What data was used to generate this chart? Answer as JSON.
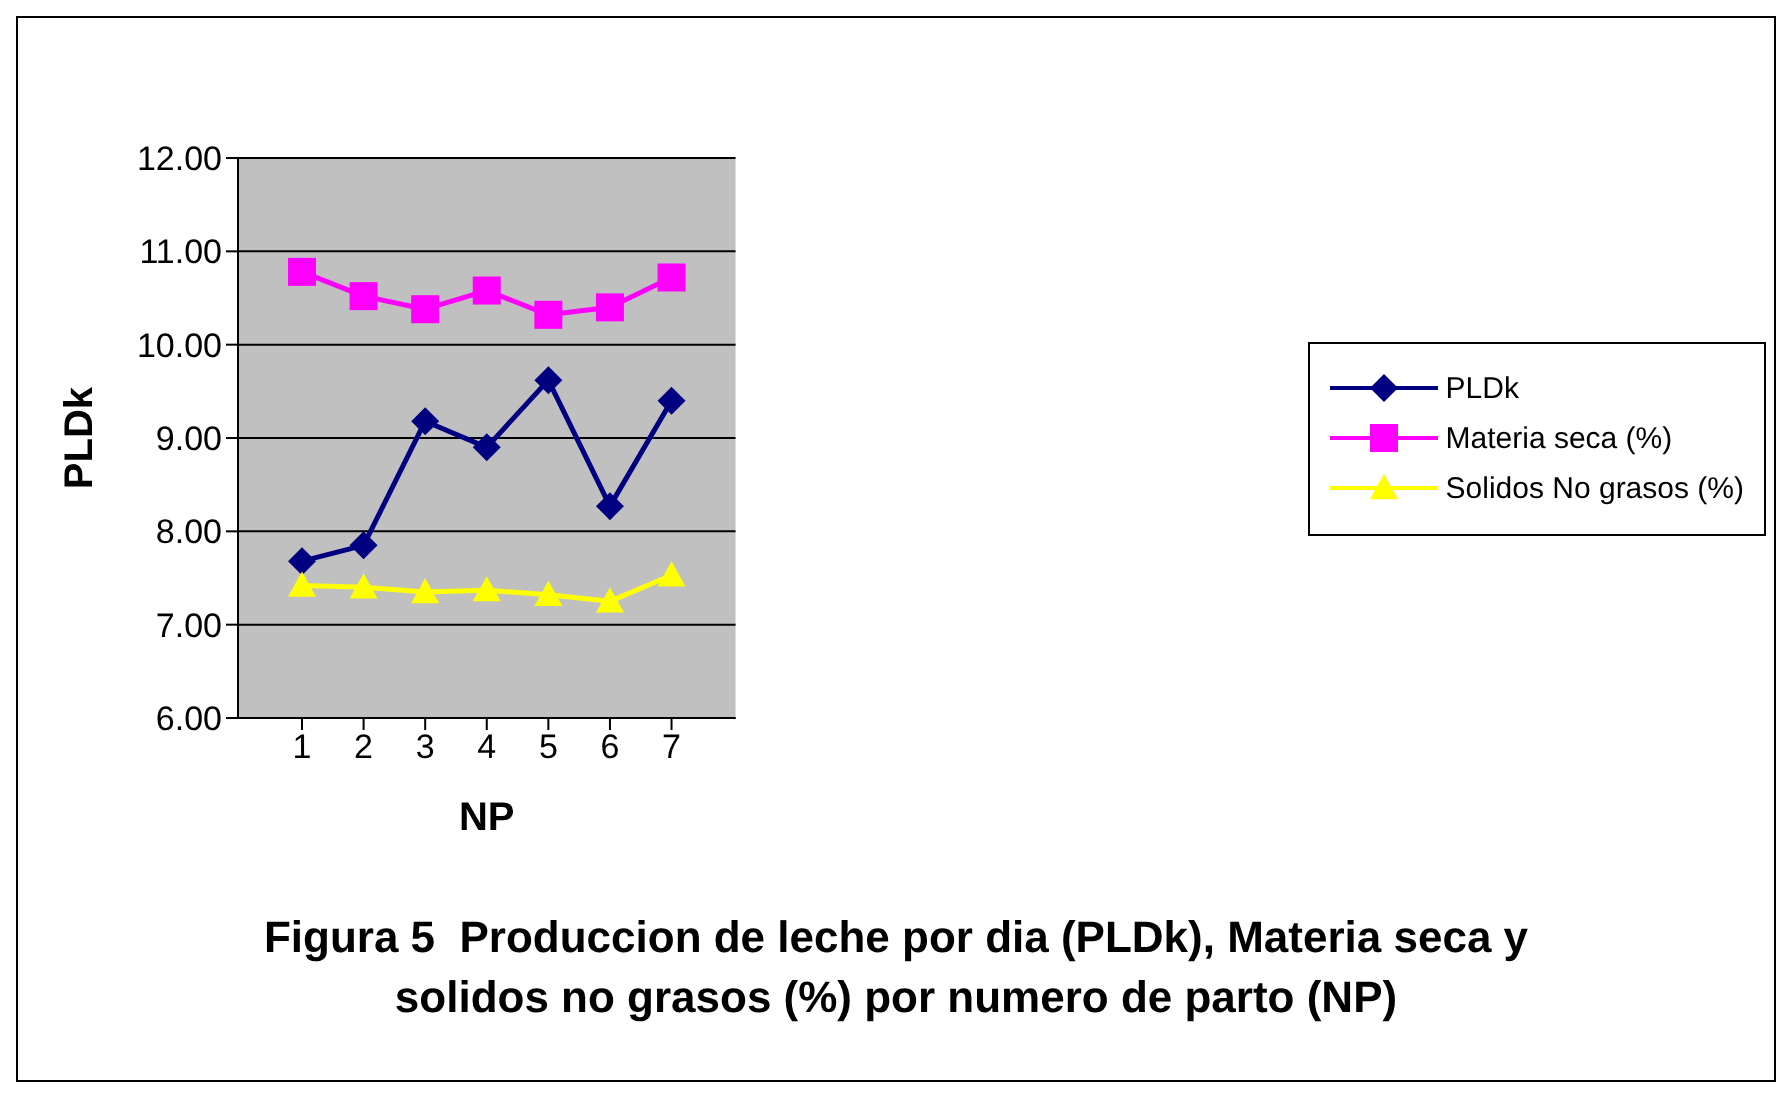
{
  "chart_data": {
    "type": "line",
    "title": "Figura 5  Produccion de leche por dia (PLDk), Materia seca y solidos no grasos (%) por numero de parto (NP)",
    "xlabel": "NP",
    "ylabel": "PLDk",
    "categories": [
      "1",
      "2",
      "3",
      "4",
      "5",
      "6",
      "7"
    ],
    "series": [
      {
        "name": "PLDk",
        "color": "#000080",
        "marker": "diamond",
        "values": [
          7.68,
          7.85,
          9.18,
          8.9,
          9.62,
          8.27,
          9.4
        ]
      },
      {
        "name": "Materia seca (%)",
        "color": "#ff00ff",
        "marker": "square",
        "values": [
          10.78,
          10.52,
          10.38,
          10.58,
          10.32,
          10.4,
          10.72
        ]
      },
      {
        "name": "Solidos No grasos (%)",
        "color": "#ffff00",
        "marker": "triangle",
        "values": [
          7.42,
          7.4,
          7.35,
          7.37,
          7.32,
          7.25,
          7.53
        ]
      }
    ],
    "ylim": [
      6,
      12
    ],
    "yticks": [
      {
        "value": 6,
        "label": "6.00"
      },
      {
        "value": 7,
        "label": "7.00"
      },
      {
        "value": 8,
        "label": "8.00"
      },
      {
        "value": 9,
        "label": "9.00"
      },
      {
        "value": 10,
        "label": "10.00"
      },
      {
        "value": 11,
        "label": "11.00"
      },
      {
        "value": 12,
        "label": "12.00"
      }
    ],
    "grid": "y",
    "legend": "right",
    "line_style": "solid"
  }
}
